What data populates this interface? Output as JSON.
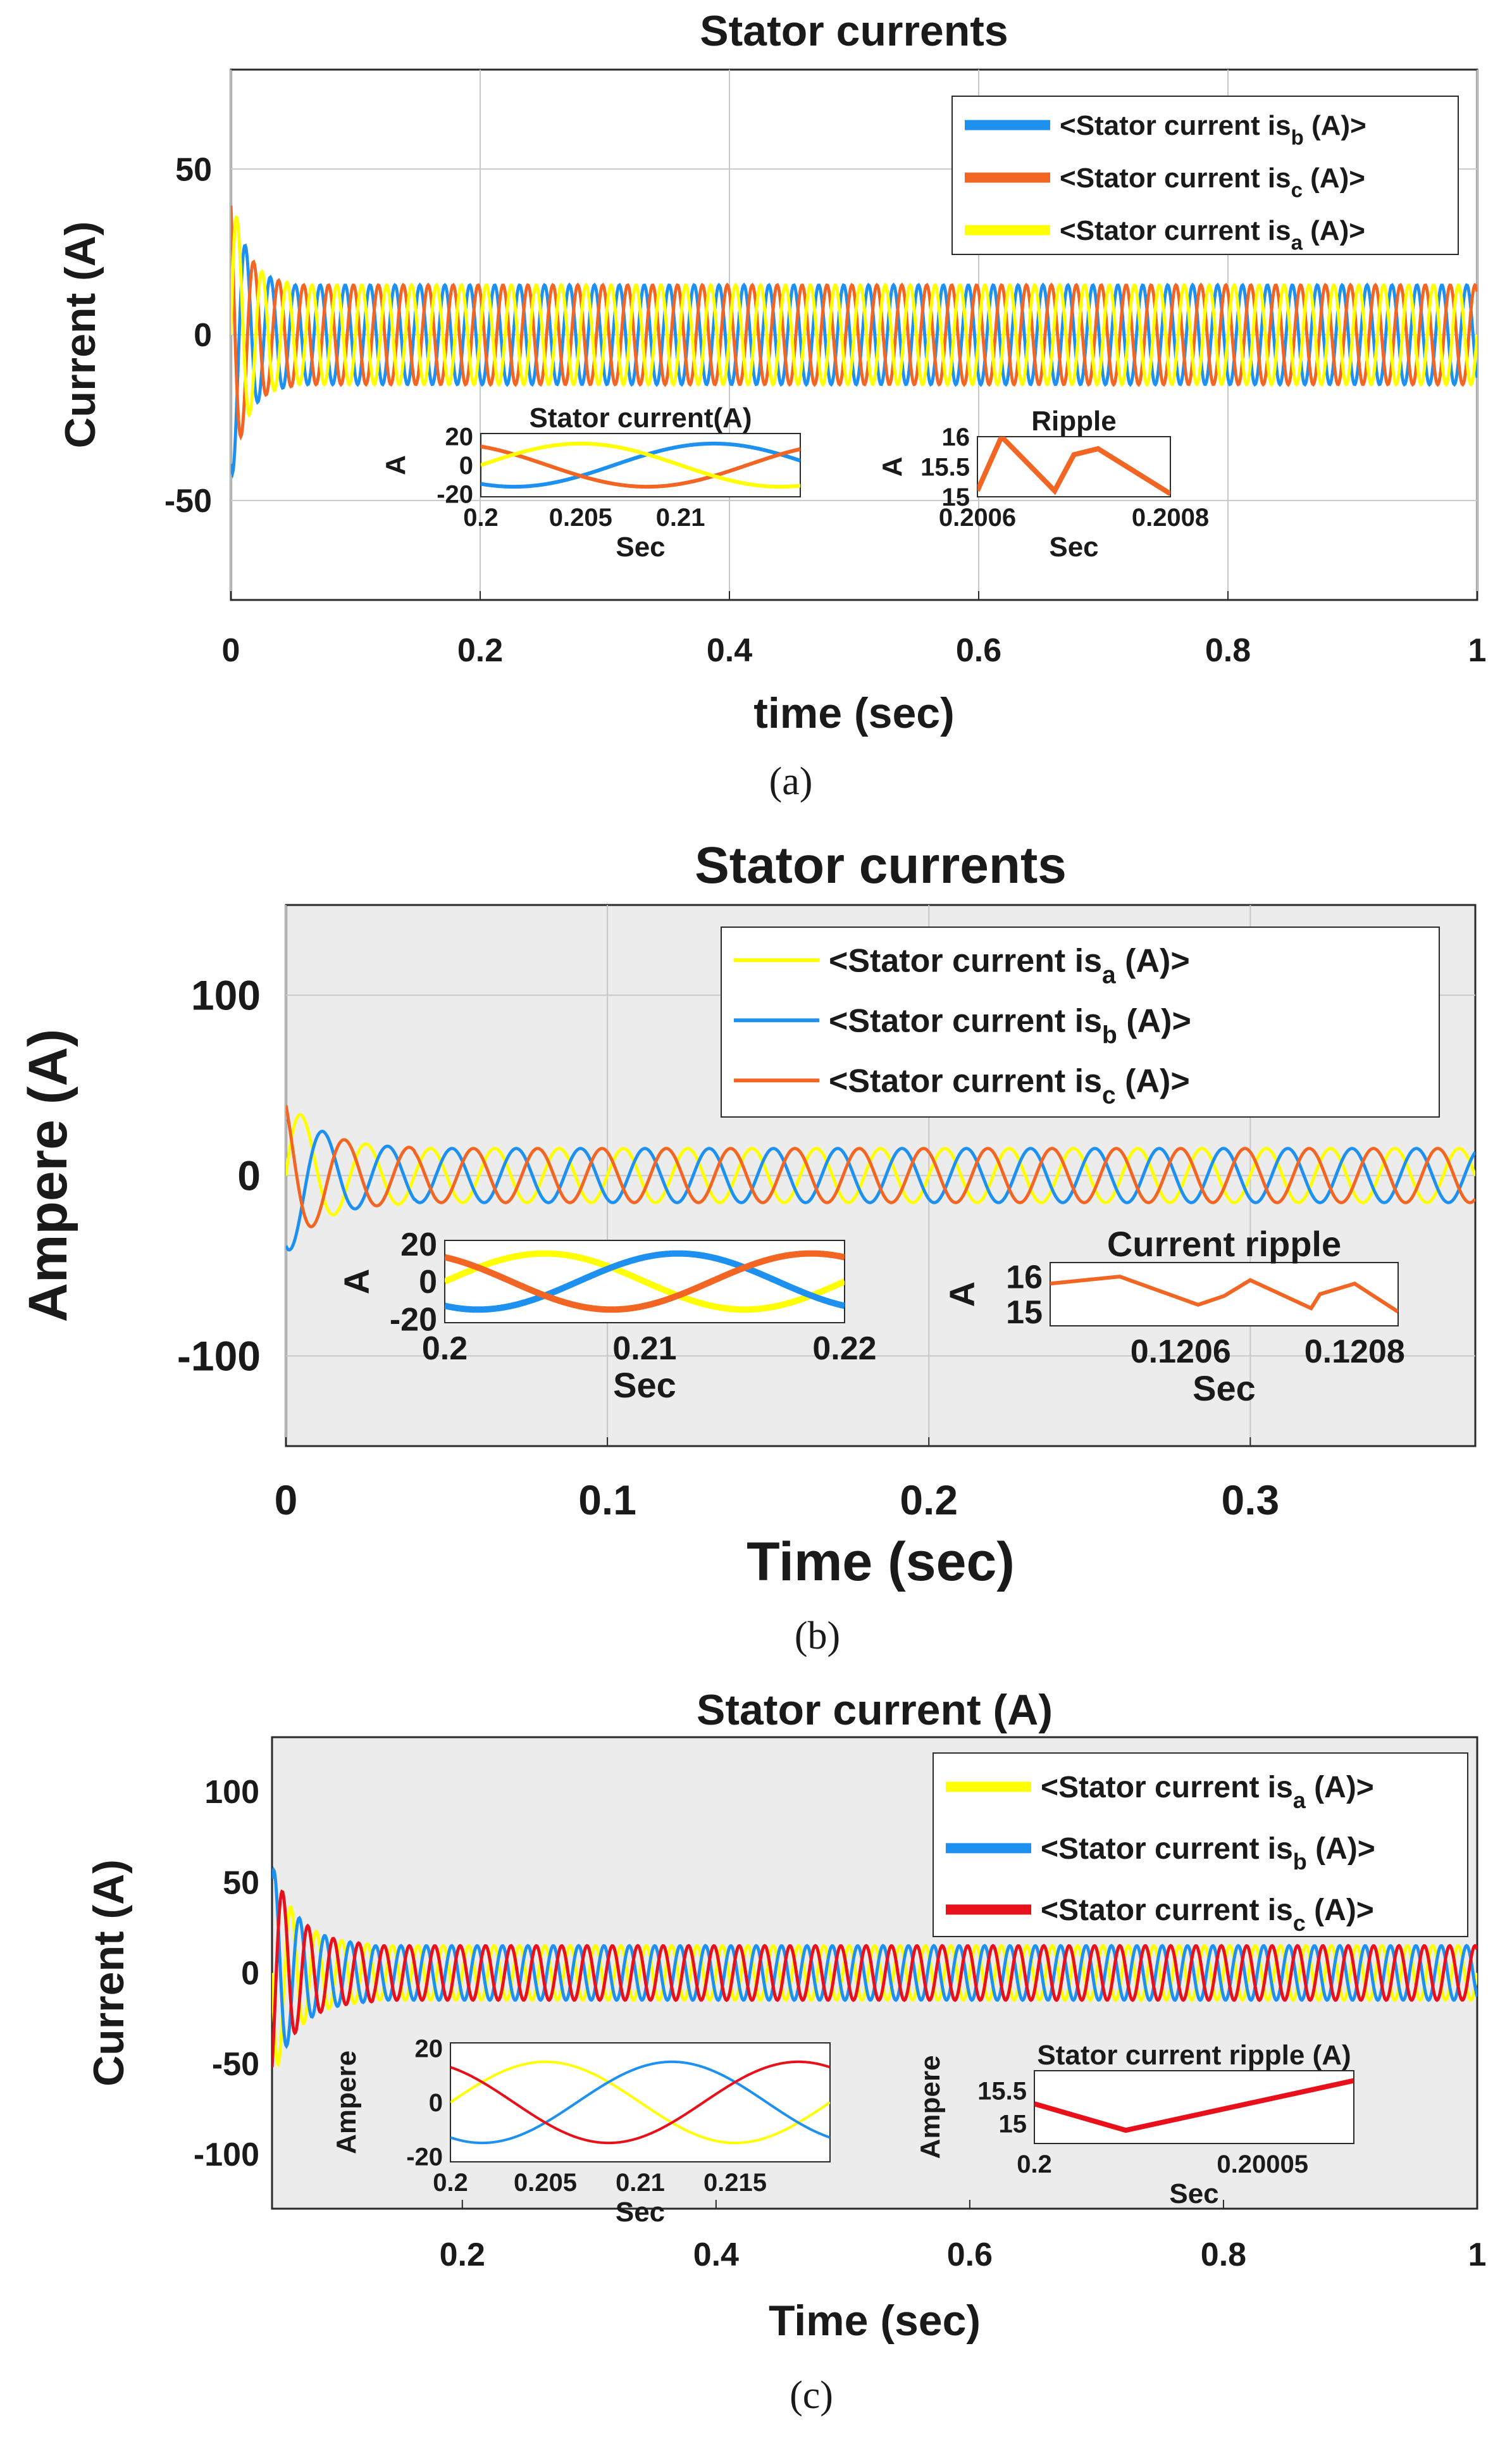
{
  "colors": {
    "yellow": "#ffff00",
    "blue": "#1e90f0",
    "orange": "#f26522",
    "red": "#e8101a",
    "panel_bg_gray": "#ececec"
  },
  "chart_data": [
    {
      "id": "a",
      "type": "line",
      "caption": "(a)",
      "title": "Stator currents",
      "xlabel": "time (sec)",
      "ylabel": "Current (A)",
      "xlim": [
        0,
        1
      ],
      "ylim": [
        -80,
        80
      ],
      "xticks": [
        "0",
        "0.2",
        "0.4",
        "0.6",
        "0.8",
        "1"
      ],
      "yticks": [
        "-50",
        "0",
        "50"
      ],
      "grid": true,
      "legend_position": "top-right",
      "series": [
        {
          "name": "<Stator current is",
          "sub": "b",
          "suffix": " (A)>",
          "color_key": "blue",
          "amplitude": 15,
          "frequency_hz": 50,
          "phase_deg": -120
        },
        {
          "name": "<Stator current is",
          "sub": "c",
          "suffix": " (A)>",
          "color_key": "orange",
          "amplitude": 15,
          "frequency_hz": 50,
          "phase_deg": 120
        },
        {
          "name": "<Stator current is",
          "sub": "a",
          "suffix": " (A)>",
          "color_key": "yellow",
          "amplitude": 15,
          "frequency_hz": 50,
          "phase_deg": 0
        }
      ],
      "transient": {
        "peak": 45,
        "duration_sec": 0.05
      },
      "insets": [
        {
          "title": "Stator current(A)",
          "xlabel": "Sec",
          "ylabel": "A",
          "xlim": [
            0.2,
            0.216
          ],
          "ylim": [
            -22,
            22
          ],
          "xticks": [
            "0.2",
            "0.205",
            "0.21"
          ],
          "yticks": [
            "20",
            "0",
            "-20"
          ],
          "kind": "wave"
        },
        {
          "title": "Ripple",
          "xlabel": "Sec",
          "ylabel": "A",
          "xlim": [
            0.2006,
            0.2008
          ],
          "ylim": [
            15,
            16
          ],
          "xticks": [
            "0.2006",
            "0.2008"
          ],
          "yticks": [
            "16",
            "15.5",
            "15"
          ],
          "kind": "ripple",
          "x": [
            0.2006,
            0.200625,
            0.20068,
            0.2007,
            0.200725,
            0.2008
          ],
          "y": [
            15.1,
            16,
            15.1,
            15.7,
            15.8,
            15.05
          ]
        }
      ]
    },
    {
      "id": "b",
      "type": "line",
      "caption": "(b)",
      "title": "Stator currents",
      "xlabel": "Time (sec)",
      "ylabel": "Ampere (A)",
      "xlim": [
        0,
        0.37
      ],
      "ylim": [
        -150,
        150
      ],
      "xticks": [
        "0",
        "0.1",
        "0.2",
        "0.3"
      ],
      "yticks": [
        "100",
        "0",
        "-100"
      ],
      "grid": true,
      "legend_position": "top-right",
      "series": [
        {
          "name": "<Stator current is",
          "sub": "a",
          "suffix": " (A)>",
          "color_key": "yellow",
          "amplitude": 15,
          "frequency_hz": 50,
          "phase_deg": 0
        },
        {
          "name": "<Stator current is",
          "sub": "b",
          "suffix": " (A)>",
          "color_key": "blue",
          "amplitude": 15,
          "frequency_hz": 50,
          "phase_deg": -120
        },
        {
          "name": "<Stator current is",
          "sub": "c",
          "suffix": " (A)>",
          "color_key": "orange",
          "amplitude": 15,
          "frequency_hz": 50,
          "phase_deg": 120
        }
      ],
      "transient": {
        "peak": 45,
        "duration_sec": 0.04
      },
      "insets": [
        {
          "title": "",
          "xlabel": "Sec",
          "ylabel": "A",
          "xlim": [
            0.2,
            0.22
          ],
          "ylim": [
            -22,
            22
          ],
          "xticks": [
            "0.2",
            "0.21",
            "0.22"
          ],
          "yticks": [
            "20",
            "0",
            "-20"
          ],
          "kind": "wave"
        },
        {
          "title": "Current ripple",
          "xlabel": "Sec",
          "ylabel": "A",
          "xlim": [
            0.12045,
            0.12085
          ],
          "ylim": [
            14.6,
            16.4
          ],
          "xticks": [
            "0.1206",
            "0.1208"
          ],
          "yticks": [
            "16",
            "15"
          ],
          "kind": "ripple",
          "x": [
            0.12045,
            0.12053,
            0.12062,
            0.12065,
            0.12068,
            0.12075,
            0.12076,
            0.1208,
            0.12085
          ],
          "y": [
            15.8,
            16,
            15.2,
            15.45,
            15.9,
            15.1,
            15.5,
            15.8,
            15.0
          ]
        }
      ]
    },
    {
      "id": "c",
      "type": "line",
      "caption": "(c)",
      "title": "Stator current (A)",
      "xlabel": "Time (sec)",
      "ylabel": "Current (A)",
      "xlim": [
        0.05,
        1
      ],
      "ylim": [
        -130,
        130
      ],
      "xticks": [
        "0.2",
        "0.4",
        "0.6",
        "0.8",
        "1"
      ],
      "yticks": [
        "100",
        "50",
        "0",
        "-50",
        "-100"
      ],
      "grid": false,
      "legend_position": "top-right",
      "series": [
        {
          "name": "<Stator current is",
          "sub": "a",
          "suffix": " (A)>",
          "color_key": "yellow",
          "amplitude": 15,
          "frequency_hz": 50,
          "phase_deg": 0
        },
        {
          "name": "<Stator current is",
          "sub": "b",
          "suffix": " (A)>",
          "color_key": "blue",
          "amplitude": 15,
          "frequency_hz": 50,
          "phase_deg": -120
        },
        {
          "name": "<Stator current is",
          "sub": "c",
          "suffix": " (A)>",
          "color_key": "red",
          "amplitude": 15,
          "frequency_hz": 50,
          "phase_deg": 120
        }
      ],
      "transient": {
        "peak": 60,
        "duration_sec": 0.08
      },
      "insets": [
        {
          "title": "",
          "xlabel": "Sec",
          "ylabel": "Ampere",
          "xlim": [
            0.2,
            0.22
          ],
          "ylim": [
            -22,
            22
          ],
          "xticks": [
            "0.2",
            "0.205",
            "0.21",
            "0.215"
          ],
          "yticks": [
            "20",
            "0",
            "-20"
          ],
          "kind": "wave"
        },
        {
          "title": "Stator current ripple (A)",
          "xlabel": "Sec",
          "ylabel": "Ampere",
          "xlim": [
            0.2,
            0.20007
          ],
          "ylim": [
            14.7,
            15.8
          ],
          "xticks": [
            "0.2",
            "0.20005"
          ],
          "yticks": [
            "15.5",
            "15"
          ],
          "kind": "ripple",
          "x": [
            0.2,
            0.20002,
            0.20007
          ],
          "y": [
            15.3,
            14.9,
            15.65
          ]
        }
      ]
    }
  ]
}
